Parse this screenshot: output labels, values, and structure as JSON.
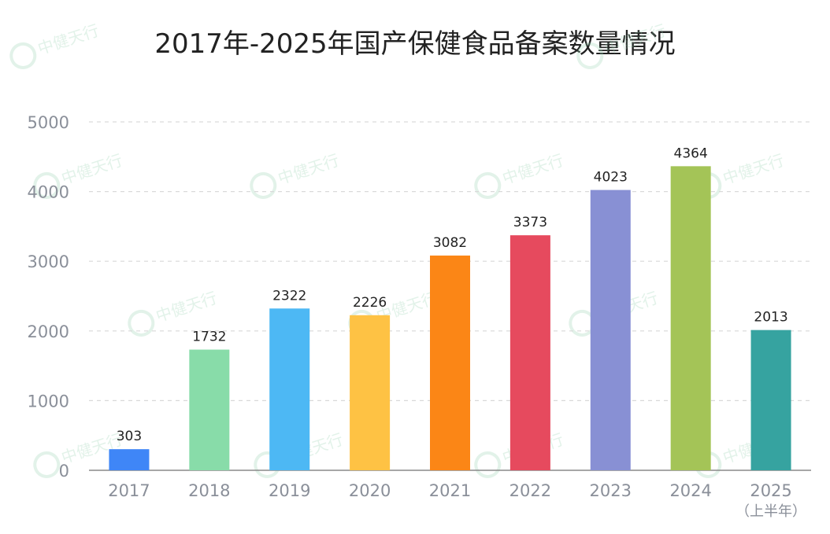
{
  "watermark_text": "中健天行",
  "chart_data": {
    "type": "bar",
    "title": "2017年-2025年国产保健食品备案数量情况",
    "categories": [
      "2017",
      "2018",
      "2019",
      "2020",
      "2021",
      "2022",
      "2023",
      "2024",
      "2025"
    ],
    "category_notes": [
      "",
      "",
      "",
      "",
      "",
      "",
      "",
      "",
      "（上半年）"
    ],
    "values": [
      303,
      1732,
      2322,
      2226,
      3082,
      3373,
      4023,
      4364,
      2013
    ],
    "colors": [
      "#3f86f7",
      "#88dca9",
      "#4db8f4",
      "#fec244",
      "#fb8616",
      "#e64a5e",
      "#8890d4",
      "#a4c457",
      "#36a3a0"
    ],
    "yticks": [
      0,
      1000,
      2000,
      3000,
      4000,
      5000
    ],
    "ylim": [
      0,
      5000
    ],
    "grid": true,
    "xlabel": "",
    "ylabel": ""
  }
}
